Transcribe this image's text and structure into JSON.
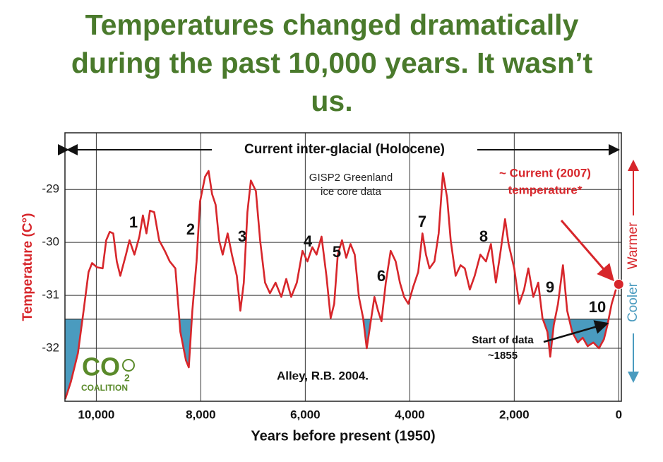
{
  "chart_data": {
    "type": "line",
    "title_lines": [
      "Temperatures changed dramatically",
      "during the past 10,000 years. It wasn’t",
      "us."
    ],
    "x_label": "Years before present (1950)",
    "y_label": "Temperature (C°)",
    "xlim": [
      10600,
      -50
    ],
    "ylim": [
      -33,
      -27.93
    ],
    "xticks": [
      {
        "value": 10000,
        "label": "10,000"
      },
      {
        "value": 8000,
        "label": "8,000"
      },
      {
        "value": 6000,
        "label": "6,000"
      },
      {
        "value": 4000,
        "label": "4,000"
      },
      {
        "value": 2000,
        "label": "2,000"
      },
      0
    ],
    "yticks": [
      -29,
      -30,
      -31,
      -32
    ],
    "grid": true,
    "reference_line": -31.45,
    "series": [
      {
        "name": "GISP2 Greenland ice core data",
        "color": "#d7262b",
        "x": [
          10595,
          10486,
          10351,
          10243,
          10149,
          10081,
          9986,
          9878,
          9811,
          9743,
          9676,
          9608,
          9541,
          9432,
          9365,
          9270,
          9176,
          9108,
          9041,
          8973,
          8892,
          8797,
          8689,
          8595,
          8486,
          8392,
          8284,
          8230,
          8162,
          8081,
          8014,
          7919,
          7851,
          7784,
          7716,
          7649,
          7581,
          7486,
          7405,
          7311,
          7243,
          7176,
          7108,
          7041,
          6946,
          6865,
          6770,
          6676,
          6568,
          6459,
          6365,
          6270,
          6162,
          6054,
          5959,
          5865,
          5784,
          5689,
          5595,
          5514,
          5446,
          5378,
          5297,
          5216,
          5135,
          5054,
          4973,
          4892,
          4824,
          4757,
          4676,
          4608,
          4541,
          4459,
          4365,
          4270,
          4189,
          4108,
          4027,
          3932,
          3838,
          3757,
          3689,
          3622,
          3527,
          3446,
          3365,
          3284,
          3216,
          3122,
          3027,
          2946,
          2851,
          2757,
          2649,
          2541,
          2446,
          2351,
          2270,
          2176,
          2108,
          2000,
          1905,
          1811,
          1730,
          1635,
          1541,
          1459,
          1365,
          1311,
          1243,
          1162,
          1068,
          986,
          892,
          784,
          689,
          595,
          486,
          378,
          284,
          216,
          135,
          54
        ],
        "values": [
          -32.96,
          -32.63,
          -32.09,
          -31.29,
          -30.56,
          -30.39,
          -30.47,
          -30.49,
          -29.96,
          -29.8,
          -29.83,
          -30.36,
          -30.63,
          -30.23,
          -29.96,
          -30.23,
          -29.89,
          -29.49,
          -29.83,
          -29.4,
          -29.43,
          -29.96,
          -30.16,
          -30.36,
          -30.49,
          -31.69,
          -32.23,
          -32.36,
          -31.29,
          -30.36,
          -29.23,
          -28.76,
          -28.65,
          -29.09,
          -29.29,
          -29.96,
          -30.23,
          -29.83,
          -30.23,
          -30.63,
          -31.29,
          -30.76,
          -29.43,
          -28.83,
          -29.03,
          -29.96,
          -30.76,
          -30.96,
          -30.76,
          -31.03,
          -30.69,
          -31.03,
          -30.76,
          -30.16,
          -30.36,
          -30.09,
          -30.23,
          -29.89,
          -30.63,
          -31.43,
          -31.16,
          -30.23,
          -29.96,
          -30.29,
          -30.03,
          -30.23,
          -31.03,
          -31.43,
          -32.0,
          -31.56,
          -31.03,
          -31.29,
          -31.49,
          -30.76,
          -30.16,
          -30.36,
          -30.76,
          -31.03,
          -31.16,
          -30.83,
          -30.56,
          -29.83,
          -30.23,
          -30.49,
          -30.36,
          -29.83,
          -28.69,
          -29.16,
          -29.96,
          -30.63,
          -30.43,
          -30.49,
          -30.89,
          -30.63,
          -30.23,
          -30.36,
          -30.03,
          -30.76,
          -30.23,
          -29.56,
          -30.03,
          -30.49,
          -31.16,
          -30.89,
          -30.49,
          -31.03,
          -30.76,
          -31.43,
          -31.69,
          -32.16,
          -31.56,
          -31.16,
          -30.43,
          -31.29,
          -31.69,
          -31.89,
          -31.8,
          -31.96,
          -31.89,
          -32.0,
          -31.83,
          -31.56,
          -31.16,
          -30.89
        ]
      }
    ],
    "fill_color": "#4a9bbf",
    "current": {
      "x": 0,
      "value": -30.79,
      "label_lines": [
        "~ Current (2007)",
        "temperature*"
      ]
    },
    "span_label": "Current inter-glacial (Holocene)",
    "source_lines": [
      "GISP2 Greenland",
      "ice core data"
    ],
    "citation": "Alley, R.B. 2004.",
    "start_label_lines": [
      "Start of data",
      "~1855"
    ],
    "episode_labels": [
      "1",
      "2",
      "3",
      "4",
      "5",
      "6",
      "7",
      "8",
      "9",
      "10"
    ],
    "side_labels": {
      "cooler": "Cooler",
      "warmer": "Warmer"
    },
    "logo": {
      "main": "CO",
      "sub": "2",
      "name": "COALITION"
    }
  }
}
